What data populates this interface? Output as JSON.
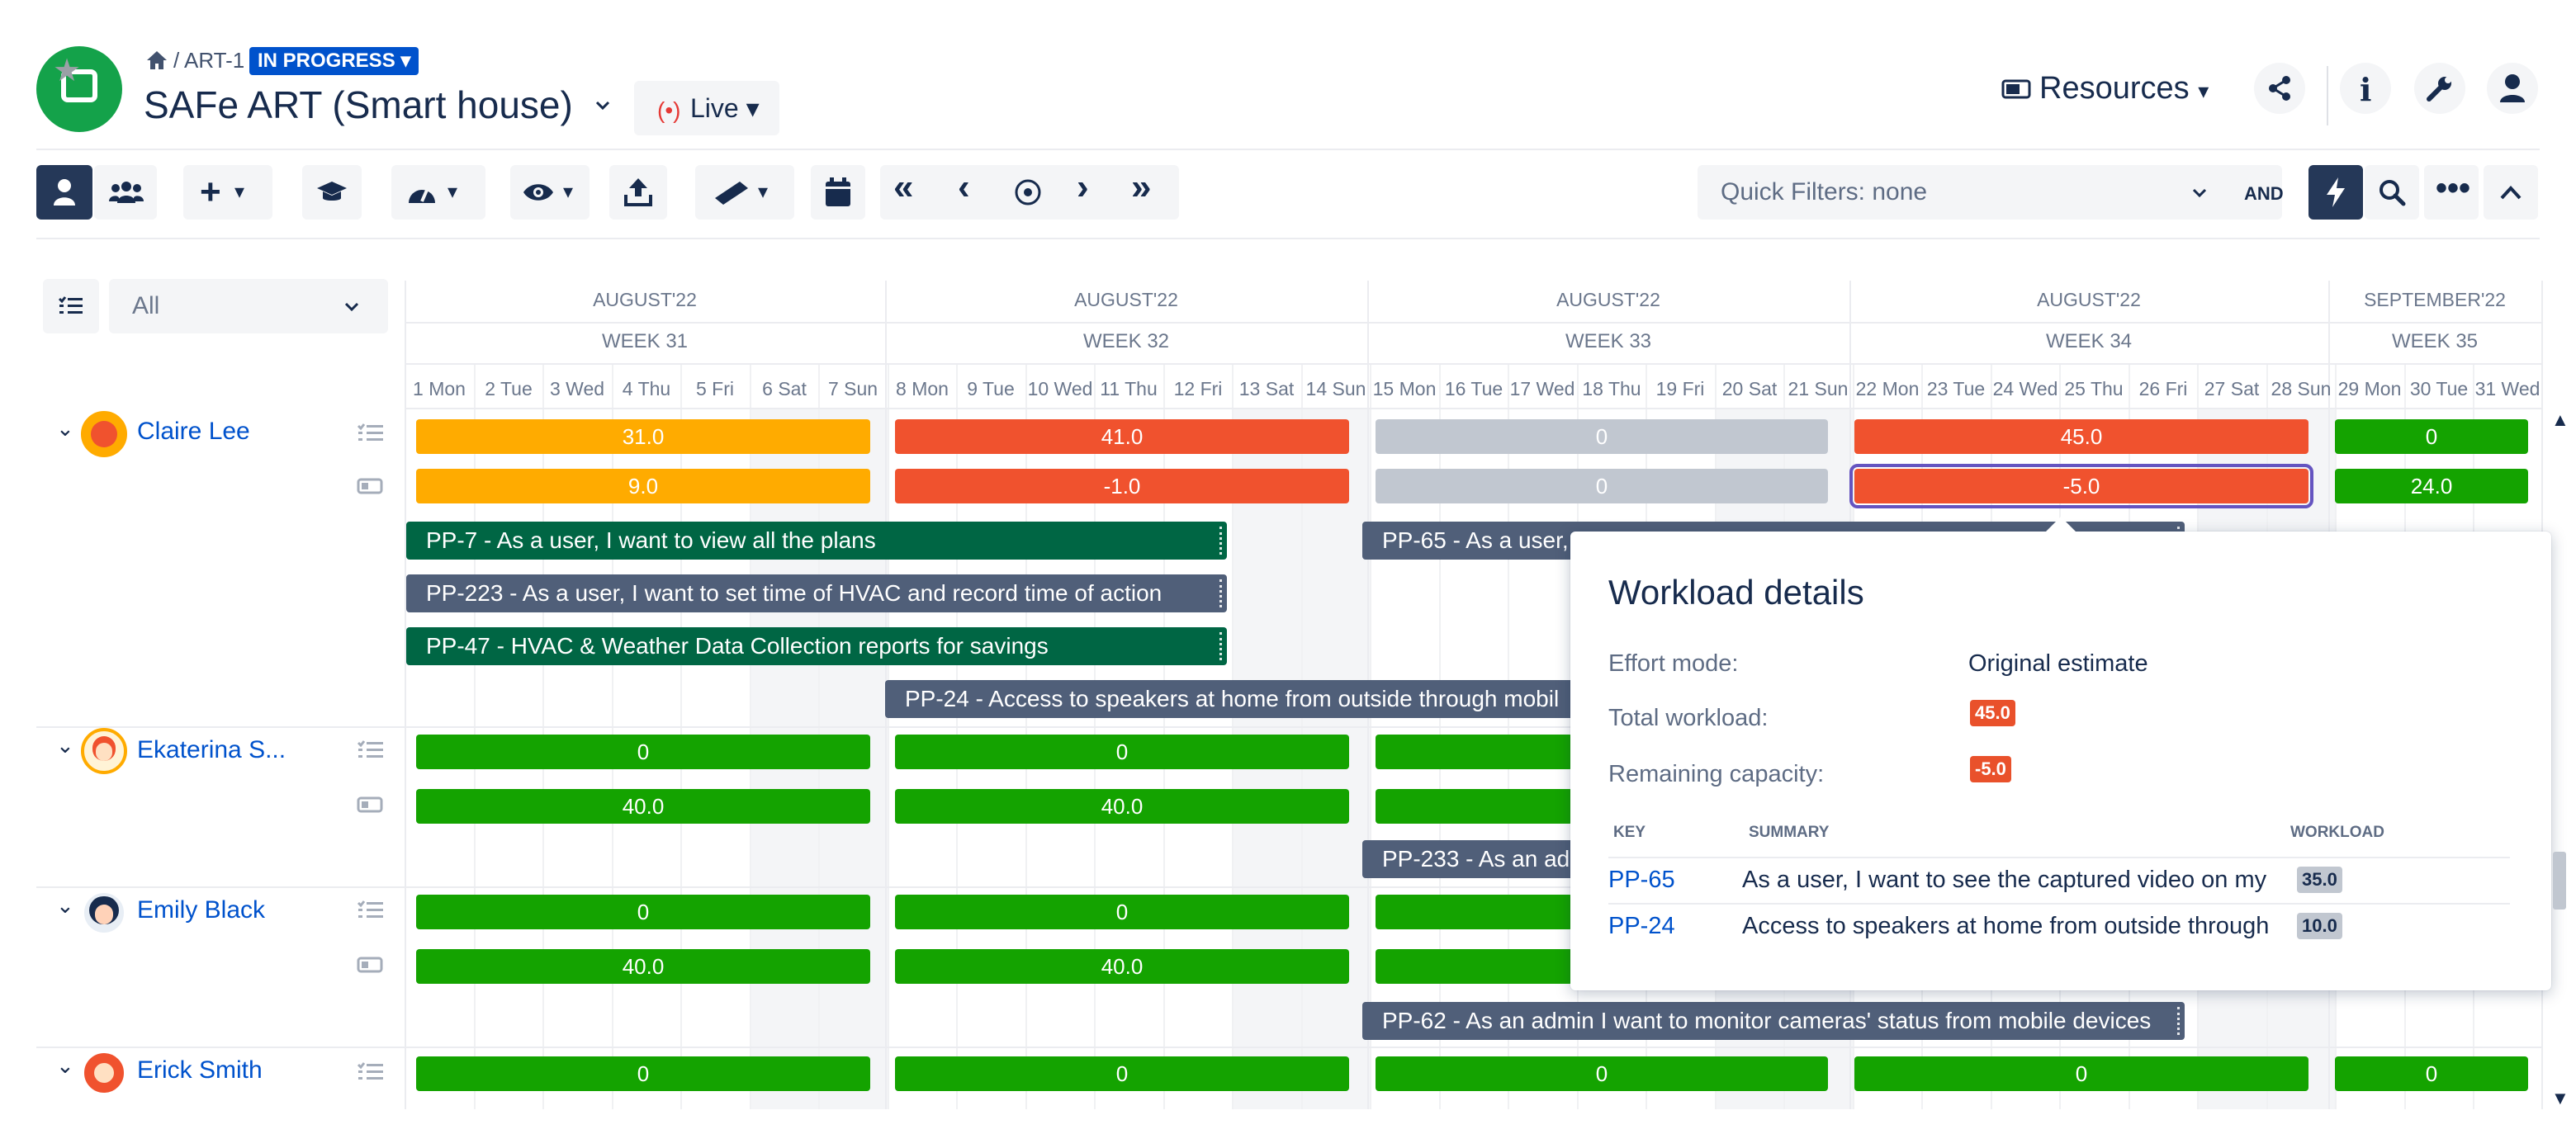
{
  "header": {
    "breadcrumb": "/ ART-1",
    "status": "IN PROGRESS",
    "title": "SAFe ART (Smart house)",
    "view_mode": "Live",
    "resources_label": "Resources"
  },
  "toolbar": {
    "quick_filters": "Quick Filters: none",
    "and_label": "AND"
  },
  "filter": {
    "selected": "All"
  },
  "timeline": {
    "weeks": [
      {
        "month": "AUGUST'22",
        "week": "WEEK 31"
      },
      {
        "month": "AUGUST'22",
        "week": "WEEK 32"
      },
      {
        "month": "AUGUST'22",
        "week": "WEEK 33"
      },
      {
        "month": "AUGUST'22",
        "week": "WEEK 34"
      },
      {
        "month": "SEPTEMBER'22",
        "week": "WEEK 35"
      }
    ],
    "days": [
      "1 Mon",
      "2 Tue",
      "3 Wed",
      "4 Thu",
      "5 Fri",
      "6 Sat",
      "7 Sun",
      "8 Mon",
      "9 Tue",
      "10 Wed",
      "11 Thu",
      "12 Fri",
      "13 Sat",
      "14 Sun",
      "15 Mon",
      "16 Tue",
      "17 Wed",
      "18 Thu",
      "19 Fri",
      "20 Sat",
      "21 Sun",
      "22 Mon",
      "23 Tue",
      "24 Wed",
      "25 Thu",
      "26 Fri",
      "27 Sat",
      "28 Sun",
      "29 Mon",
      "30 Tue",
      "31 Wed"
    ]
  },
  "people": [
    {
      "name": "Claire Lee",
      "workload": [
        "31.0",
        "41.0",
        "0",
        "45.0",
        "0"
      ],
      "capacity": [
        "9.0",
        "-1.0",
        "0",
        "-5.0",
        "24.0"
      ]
    },
    {
      "name": "Ekaterina S...",
      "workload": [
        "0",
        "0",
        "",
        ""
      ],
      "capacity": [
        "40.0",
        "40.0",
        "",
        ""
      ]
    },
    {
      "name": "Emily Black",
      "workload": [
        "0",
        "0",
        "",
        ""
      ],
      "capacity": [
        "40.0",
        "40.0",
        "",
        ""
      ]
    },
    {
      "name": "Erick Smith",
      "workload": [
        "0",
        "0",
        "0",
        "0",
        "0"
      ]
    }
  ],
  "tasks": {
    "pp7": "PP-7 - As a user, I want to view all the plans",
    "pp65": "PP-65 - As a user,",
    "pp223": "PP-223 - As a user, I want to set time of HVAC and record time of action",
    "pp47": "PP-47 - HVAC & Weather Data Collection reports for savings",
    "pp24": "PP-24 - Access to speakers at home from outside through mobil",
    "pp233": "PP-233 - As an ad",
    "pp62": "PP-62 - As an admin I want to monitor cameras' status from mobile devices"
  },
  "popup": {
    "title": "Workload details",
    "effort_label": "Effort mode:",
    "effort_value": "Original estimate",
    "total_label": "Total workload:",
    "total_value": "45.0",
    "remaining_label": "Remaining capacity:",
    "remaining_value": "-5.0",
    "col_key": "KEY",
    "col_summary": "SUMMARY",
    "col_workload": "WORKLOAD",
    "rows": [
      {
        "key": "PP-65",
        "summary": "As a user, I want to see the captured video on my",
        "workload": "35.0"
      },
      {
        "key": "PP-24",
        "summary": "Access to speakers at home from outside through",
        "workload": "10.0"
      }
    ]
  },
  "colors": {
    "orange": "#FFAB00",
    "red": "#F0522E",
    "gray": "#C1C7D0",
    "green": "#14A300",
    "task_green": "#006644",
    "task_slate": "#505F79",
    "accent": "#0052CC"
  },
  "icons": [
    "home-icon",
    "share-icon",
    "info-icon",
    "wrench-icon",
    "user-icon",
    "person-icon",
    "people-icon",
    "plus-icon",
    "graduation-cap-icon",
    "gauge-icon",
    "eye-icon",
    "export-icon",
    "ruler-icon",
    "calendar-icon",
    "double-chevron-left-icon",
    "chevron-left-icon",
    "target-icon",
    "chevron-right-icon",
    "double-chevron-right-icon",
    "lightning-icon",
    "search-icon",
    "more-icon",
    "chevron-up-icon",
    "list-icon",
    "battery-icon"
  ]
}
